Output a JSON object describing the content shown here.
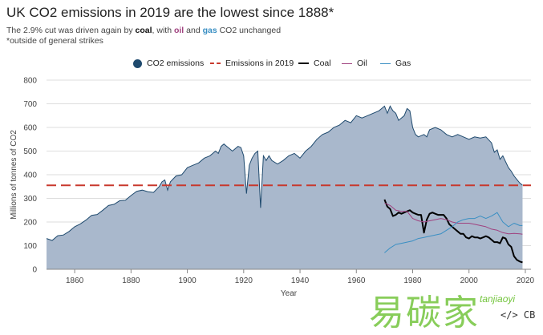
{
  "header": {
    "title": "UK CO2 emissions in 2019 are the lowest since 1888*",
    "subtitle_pre": "The 2.9% cut was driven again by ",
    "subtitle_coal": "coal",
    "subtitle_mid": ", with ",
    "subtitle_oil": "oil",
    "subtitle_and": " and ",
    "subtitle_gas": "gas",
    "subtitle_post": " CO2 unchanged",
    "footnote": "*outside of general strikes"
  },
  "legend": {
    "co2": "CO2 emissions",
    "emissions2019": "Emissions in 2019",
    "coal": "Coal",
    "oil": "Oil",
    "gas": "Gas"
  },
  "colors": {
    "area_fill": "#a9b8cc",
    "area_stroke": "#1f4a6e",
    "dashed_2019": "#c8382d",
    "coal": "#000000",
    "oil": "#a0427f",
    "gas": "#3a8fc3",
    "grid": "#dddddd"
  },
  "watermark": {
    "text": "易碳家",
    "site": "tanjiaoyi",
    "logo": "</> CB"
  },
  "chart_data": {
    "type": "area",
    "title": "UK CO2 emissions in 2019 are the lowest since 1888*",
    "xlabel": "Year",
    "ylabel": "Millions of tonnes of CO2",
    "xlim": [
      1850,
      2022
    ],
    "ylim": [
      0,
      800
    ],
    "xticks": [
      1860,
      1880,
      1900,
      1920,
      1940,
      1960,
      1980,
      2000,
      2020
    ],
    "yticks": [
      0,
      100,
      200,
      300,
      400,
      500,
      600,
      700,
      800
    ],
    "grid": true,
    "legend_position": "top",
    "reference_line": {
      "name": "Emissions in 2019",
      "value": 355,
      "style": "dashed"
    },
    "series": [
      {
        "name": "CO2 emissions",
        "kind": "area",
        "x": [
          1850,
          1852,
          1854,
          1856,
          1858,
          1860,
          1862,
          1864,
          1866,
          1868,
          1870,
          1872,
          1874,
          1876,
          1878,
          1880,
          1882,
          1884,
          1886,
          1888,
          1890,
          1891,
          1892,
          1893,
          1894,
          1896,
          1898,
          1900,
          1902,
          1904,
          1906,
          1908,
          1910,
          1911,
          1912,
          1913,
          1914,
          1916,
          1918,
          1919,
          1920,
          1921,
          1922,
          1923,
          1924,
          1925,
          1926,
          1927,
          1928,
          1929,
          1930,
          1932,
          1934,
          1936,
          1938,
          1940,
          1942,
          1944,
          1946,
          1948,
          1950,
          1952,
          1954,
          1956,
          1958,
          1960,
          1962,
          1964,
          1966,
          1968,
          1969,
          1970,
          1971,
          1972,
          1973,
          1974,
          1975,
          1976,
          1977,
          1978,
          1979,
          1980,
          1981,
          1982,
          1984,
          1985,
          1986,
          1988,
          1990,
          1992,
          1994,
          1996,
          1998,
          2000,
          2002,
          2004,
          2006,
          2008,
          2009,
          2010,
          2011,
          2012,
          2013,
          2014,
          2015,
          2016,
          2017,
          2018,
          2019
        ],
        "values": [
          130,
          122,
          142,
          145,
          160,
          180,
          192,
          208,
          228,
          232,
          250,
          270,
          275,
          290,
          292,
          312,
          330,
          335,
          328,
          325,
          350,
          370,
          378,
          335,
          370,
          395,
          400,
          430,
          440,
          450,
          470,
          480,
          500,
          490,
          520,
          530,
          520,
          500,
          520,
          515,
          480,
          320,
          440,
          470,
          490,
          500,
          260,
          480,
          460,
          480,
          460,
          445,
          460,
          480,
          490,
          470,
          500,
          520,
          550,
          570,
          580,
          600,
          610,
          630,
          620,
          650,
          640,
          650,
          660,
          670,
          680,
          690,
          660,
          690,
          670,
          660,
          630,
          640,
          650,
          680,
          670,
          600,
          570,
          560,
          570,
          560,
          590,
          600,
          590,
          570,
          560,
          570,
          560,
          550,
          560,
          555,
          560,
          535,
          495,
          505,
          465,
          480,
          455,
          430,
          415,
          395,
          380,
          365,
          355
        ]
      },
      {
        "name": "Coal",
        "kind": "line",
        "x": [
          1970,
          1971,
          1972,
          1973,
          1974,
          1975,
          1976,
          1977,
          1978,
          1979,
          1980,
          1981,
          1982,
          1983,
          1984,
          1985,
          1986,
          1987,
          1988,
          1989,
          1990,
          1991,
          1992,
          1993,
          1994,
          1995,
          1996,
          1997,
          1998,
          1999,
          2000,
          2001,
          2002,
          2003,
          2004,
          2005,
          2006,
          2007,
          2008,
          2009,
          2010,
          2011,
          2012,
          2013,
          2014,
          2015,
          2016,
          2017,
          2018,
          2019
        ],
        "values": [
          295,
          265,
          255,
          225,
          230,
          240,
          235,
          240,
          245,
          250,
          240,
          235,
          230,
          230,
          155,
          210,
          235,
          240,
          235,
          230,
          230,
          230,
          215,
          190,
          180,
          170,
          160,
          150,
          150,
          135,
          130,
          140,
          135,
          135,
          130,
          135,
          140,
          135,
          125,
          115,
          115,
          110,
          135,
          130,
          105,
          95,
          55,
          40,
          33,
          29
        ]
      },
      {
        "name": "Oil",
        "kind": "line",
        "x": [
          1970,
          1972,
          1974,
          1976,
          1978,
          1980,
          1982,
          1984,
          1986,
          1988,
          1990,
          1992,
          1994,
          1996,
          1998,
          2000,
          2002,
          2004,
          2006,
          2008,
          2010,
          2012,
          2014,
          2016,
          2018,
          2019
        ],
        "values": [
          280,
          270,
          250,
          245,
          245,
          215,
          205,
          200,
          205,
          210,
          215,
          210,
          200,
          195,
          195,
          195,
          190,
          185,
          180,
          170,
          165,
          155,
          150,
          152,
          150,
          148
        ]
      },
      {
        "name": "Gas",
        "kind": "line",
        "x": [
          1970,
          1972,
          1974,
          1976,
          1978,
          1980,
          1982,
          1984,
          1986,
          1988,
          1990,
          1992,
          1994,
          1996,
          1998,
          2000,
          2002,
          2004,
          2006,
          2008,
          2010,
          2012,
          2014,
          2016,
          2018,
          2019
        ],
        "values": [
          70,
          90,
          105,
          110,
          115,
          120,
          130,
          135,
          140,
          145,
          150,
          165,
          180,
          200,
          210,
          215,
          215,
          225,
          215,
          225,
          240,
          200,
          180,
          195,
          185,
          185
        ]
      }
    ]
  }
}
